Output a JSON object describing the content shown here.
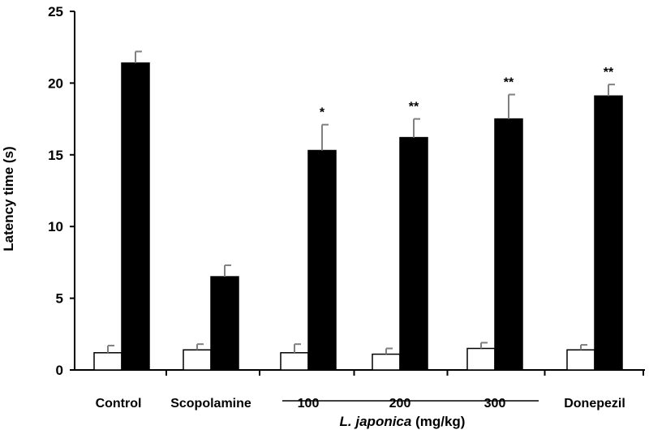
{
  "chart_data": {
    "type": "bar",
    "ylabel": "Latency time (s)",
    "ylim": [
      0,
      25
    ],
    "yticks": [
      "0",
      "5",
      "10",
      "15",
      "20",
      "25"
    ],
    "grid": false,
    "legend": "none",
    "categories": [
      "Control",
      "Scopolamine",
      "100",
      "200",
      "300",
      "Donepezil"
    ],
    "group_label": {
      "italic": "L. japonica",
      "rest": " (mg/kg)",
      "spans": [
        "100",
        "300"
      ]
    },
    "series": [
      {
        "fill": "#ffffff",
        "values": [
          1.2,
          1.4,
          1.2,
          1.1,
          1.5,
          1.4
        ],
        "errors": [
          0.5,
          0.4,
          0.6,
          0.4,
          0.4,
          0.35
        ]
      },
      {
        "fill": "#000000",
        "values": [
          21.4,
          6.5,
          15.3,
          16.2,
          17.5,
          19.1
        ],
        "errors": [
          0.8,
          0.8,
          1.8,
          1.3,
          1.7,
          0.8
        ]
      }
    ],
    "annotations": [
      "",
      "",
      "*",
      "**",
      "**",
      "**"
    ],
    "colors": {
      "axis": "#000000",
      "error_bar": "#808080",
      "bar_outline": "#000000"
    }
  }
}
